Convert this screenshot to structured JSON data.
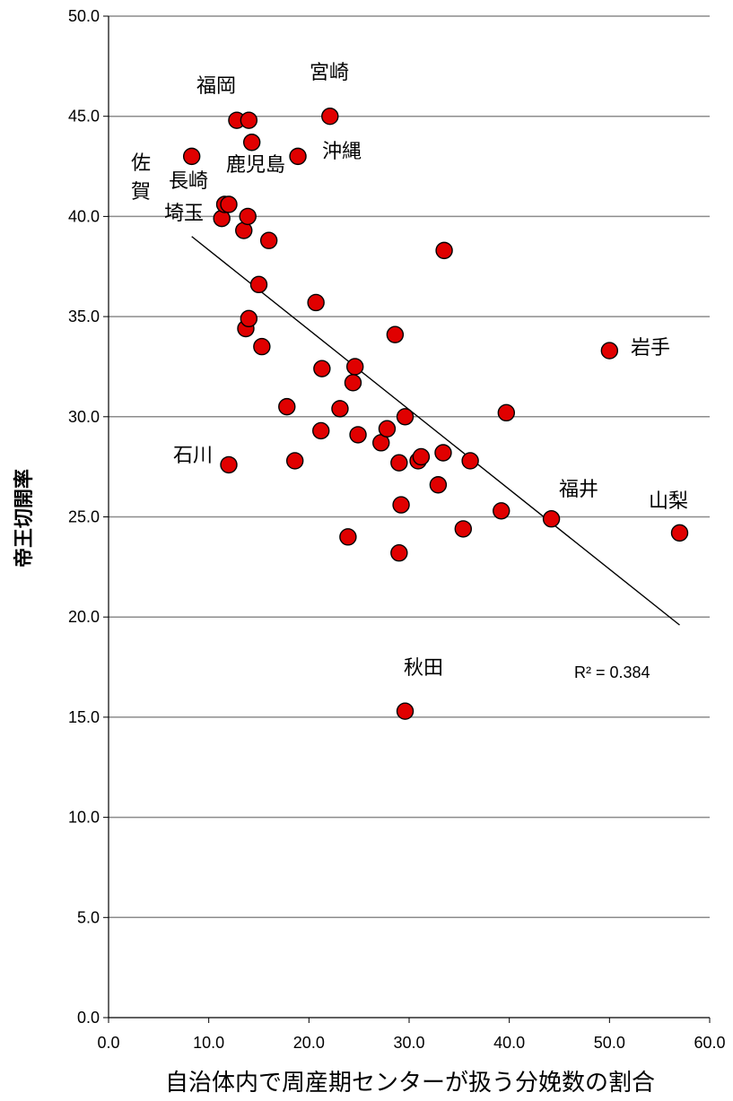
{
  "chart_data": {
    "type": "scatter",
    "title": "",
    "xlabel": "自治体内で周産期センターが扱う分娩数の割合",
    "ylabel": "帝王切開率",
    "xlim": [
      0,
      60
    ],
    "ylim": [
      0,
      50
    ],
    "x_ticks": [
      "0.0",
      "10.0",
      "20.0",
      "30.0",
      "40.0",
      "50.0",
      "60.0"
    ],
    "y_ticks": [
      "0.0",
      "5.0",
      "10.0",
      "15.0",
      "20.0",
      "25.0",
      "30.0",
      "35.0",
      "40.0",
      "45.0",
      "50.0"
    ],
    "grid": "horizontal",
    "marker_color": "#e00000",
    "marker_edge_color": "#000000",
    "points": [
      {
        "x": 8.3,
        "y": 43.0,
        "label": "佐\n賀"
      },
      {
        "x": 11.3,
        "y": 39.9,
        "label": "埼玉"
      },
      {
        "x": 11.6,
        "y": 40.6,
        "label": "長崎"
      },
      {
        "x": 12.0,
        "y": 40.6,
        "label": ""
      },
      {
        "x": 12.0,
        "y": 27.6,
        "label": "石川"
      },
      {
        "x": 12.8,
        "y": 44.8,
        "label": "福岡"
      },
      {
        "x": 13.5,
        "y": 39.3,
        "label": ""
      },
      {
        "x": 13.7,
        "y": 34.4,
        "label": ""
      },
      {
        "x": 13.9,
        "y": 40.0,
        "label": ""
      },
      {
        "x": 14.0,
        "y": 34.9,
        "label": ""
      },
      {
        "x": 14.0,
        "y": 44.8,
        "label": ""
      },
      {
        "x": 14.3,
        "y": 43.7,
        "label": "鹿児島"
      },
      {
        "x": 15.0,
        "y": 36.6,
        "label": ""
      },
      {
        "x": 15.3,
        "y": 33.5,
        "label": ""
      },
      {
        "x": 16.0,
        "y": 38.8,
        "label": ""
      },
      {
        "x": 17.8,
        "y": 30.5,
        "label": ""
      },
      {
        "x": 18.6,
        "y": 27.8,
        "label": ""
      },
      {
        "x": 18.9,
        "y": 43.0,
        "label": "沖縄"
      },
      {
        "x": 20.7,
        "y": 35.7,
        "label": ""
      },
      {
        "x": 21.2,
        "y": 29.3,
        "label": ""
      },
      {
        "x": 21.3,
        "y": 32.4,
        "label": ""
      },
      {
        "x": 22.1,
        "y": 45.0,
        "label": "宮崎"
      },
      {
        "x": 23.1,
        "y": 30.4,
        "label": ""
      },
      {
        "x": 23.9,
        "y": 24.0,
        "label": ""
      },
      {
        "x": 24.4,
        "y": 31.7,
        "label": ""
      },
      {
        "x": 24.6,
        "y": 32.5,
        "label": ""
      },
      {
        "x": 24.9,
        "y": 29.1,
        "label": ""
      },
      {
        "x": 27.2,
        "y": 28.7,
        "label": ""
      },
      {
        "x": 27.8,
        "y": 29.4,
        "label": ""
      },
      {
        "x": 28.6,
        "y": 34.1,
        "label": ""
      },
      {
        "x": 29.0,
        "y": 27.7,
        "label": ""
      },
      {
        "x": 29.0,
        "y": 23.2,
        "label": ""
      },
      {
        "x": 29.2,
        "y": 25.6,
        "label": ""
      },
      {
        "x": 29.6,
        "y": 15.3,
        "label": "秋田"
      },
      {
        "x": 29.6,
        "y": 30.0,
        "label": ""
      },
      {
        "x": 30.9,
        "y": 27.8,
        "label": ""
      },
      {
        "x": 31.2,
        "y": 28.0,
        "label": ""
      },
      {
        "x": 32.9,
        "y": 26.6,
        "label": ""
      },
      {
        "x": 33.4,
        "y": 28.2,
        "label": ""
      },
      {
        "x": 33.5,
        "y": 38.3,
        "label": ""
      },
      {
        "x": 35.4,
        "y": 24.4,
        "label": ""
      },
      {
        "x": 36.1,
        "y": 27.8,
        "label": ""
      },
      {
        "x": 39.2,
        "y": 25.3,
        "label": ""
      },
      {
        "x": 39.7,
        "y": 30.2,
        "label": ""
      },
      {
        "x": 44.2,
        "y": 24.9,
        "label": "福井"
      },
      {
        "x": 50.0,
        "y": 33.3,
        "label": "岩手"
      },
      {
        "x": 57.0,
        "y": 24.2,
        "label": "山梨"
      }
    ],
    "trendline": {
      "x": [
        8.3,
        57.0
      ],
      "y": [
        39.0,
        19.6
      ]
    },
    "r2_label": "R² = 0.384"
  }
}
